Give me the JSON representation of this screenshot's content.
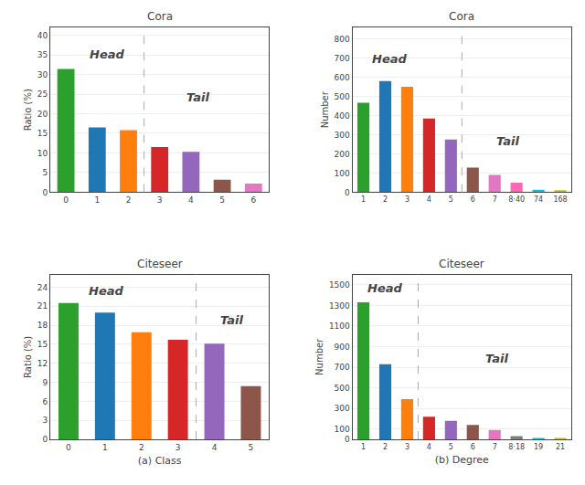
{
  "chart_data": [
    {
      "type": "bar",
      "title": "Cora",
      "categories": [
        "0",
        "1",
        "2",
        "3",
        "4",
        "5",
        "6"
      ],
      "values": [
        31.4,
        16.5,
        15.8,
        11.5,
        10.3,
        3.2,
        2.2
      ],
      "colors": [
        "#2ca02c",
        "#1f77b4",
        "#ff7f0e",
        "#d62728",
        "#9467bd",
        "#8c564b",
        "#e377c2"
      ],
      "ylabel": "Ratio (%)",
      "ylim": [
        0,
        42
      ],
      "yticks": [
        0,
        5,
        10,
        15,
        20,
        25,
        30,
        35,
        40
      ],
      "grid": true,
      "annotations": [
        "Head",
        "Tail"
      ]
    },
    {
      "type": "bar",
      "title": "Cora",
      "categories": [
        "1",
        "2",
        "3",
        "4",
        "5",
        "6",
        "7",
        "8·40",
        "74",
        "168"
      ],
      "values": [
        467,
        580,
        550,
        385,
        275,
        128,
        90,
        50,
        13,
        10
      ],
      "colors": [
        "#2ca02c",
        "#1f77b4",
        "#ff7f0e",
        "#d62728",
        "#9467bd",
        "#8c564b",
        "#e377c2",
        "#ff69b4",
        "#17becf",
        "#bcbd22"
      ],
      "ylabel": "Number",
      "ylim": [
        0,
        860
      ],
      "yticks": [
        0,
        100,
        200,
        300,
        400,
        500,
        600,
        700,
        800
      ],
      "grid": true,
      "annotations": [
        "Head",
        "Tail"
      ]
    },
    {
      "type": "bar",
      "title": "Citeseer",
      "categories": [
        "0",
        "1",
        "2",
        "3",
        "4",
        "5"
      ],
      "values": [
        21.5,
        20.0,
        16.9,
        15.7,
        15.1,
        8.4
      ],
      "colors": [
        "#2ca02c",
        "#1f77b4",
        "#ff7f0e",
        "#d62728",
        "#9467bd",
        "#8c564b"
      ],
      "ylabel": "Ratio (%)",
      "xlabel": "(a) Class",
      "ylim": [
        0,
        26
      ],
      "yticks": [
        0,
        3,
        6,
        9,
        12,
        15,
        18,
        21,
        24
      ],
      "grid": true,
      "annotations": [
        "Head",
        "Tail"
      ]
    },
    {
      "type": "bar",
      "title": "Citeseer",
      "categories": [
        "1",
        "2",
        "3",
        "4",
        "5",
        "6",
        "7",
        "8·18",
        "19",
        "21"
      ],
      "values": [
        1330,
        730,
        390,
        220,
        180,
        140,
        90,
        30,
        13,
        10
      ],
      "colors": [
        "#2ca02c",
        "#1f77b4",
        "#ff7f0e",
        "#d62728",
        "#9467bd",
        "#8c564b",
        "#e377c2",
        "#7f7f7f",
        "#17becf",
        "#bcbd22"
      ],
      "ylabel": "Number",
      "xlabel": "(b) Degree",
      "ylim": [
        0,
        1600
      ],
      "yticks": [
        0,
        100,
        300,
        500,
        700,
        900,
        1100,
        1300,
        1500
      ],
      "grid": true,
      "annotations": [
        "Head",
        "Tail"
      ]
    }
  ]
}
